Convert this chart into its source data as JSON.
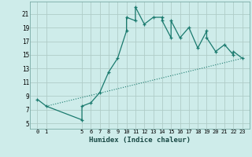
{
  "xlabel": "Humidex (Indice chaleur)",
  "bg_color": "#ceecea",
  "grid_color": "#b0ccc8",
  "line_color": "#1a7a6e",
  "curve_x": [
    0,
    1,
    5,
    5,
    6,
    7,
    8,
    9,
    10,
    10,
    11,
    11,
    12,
    13,
    14,
    14,
    15,
    15,
    16,
    17,
    18,
    19,
    19,
    20,
    21,
    22,
    22,
    23
  ],
  "curve_y": [
    8.5,
    7.5,
    5.5,
    7.5,
    8.0,
    9.5,
    12.5,
    14.5,
    18.5,
    20.5,
    20.0,
    22.0,
    19.5,
    20.5,
    20.5,
    20.0,
    17.5,
    20.0,
    17.5,
    19.0,
    16.0,
    18.5,
    17.5,
    15.5,
    16.5,
    15.0,
    15.5,
    14.5
  ],
  "trend_x": [
    1,
    23
  ],
  "trend_y": [
    7.5,
    14.5
  ],
  "xticks": [
    0,
    1,
    5,
    6,
    7,
    8,
    9,
    10,
    11,
    12,
    13,
    14,
    15,
    16,
    17,
    18,
    19,
    20,
    21,
    22,
    23
  ],
  "yticks": [
    5,
    7,
    9,
    11,
    13,
    15,
    17,
    19,
    21
  ],
  "xlim": [
    -0.8,
    23.8
  ],
  "ylim": [
    4.2,
    22.8
  ]
}
